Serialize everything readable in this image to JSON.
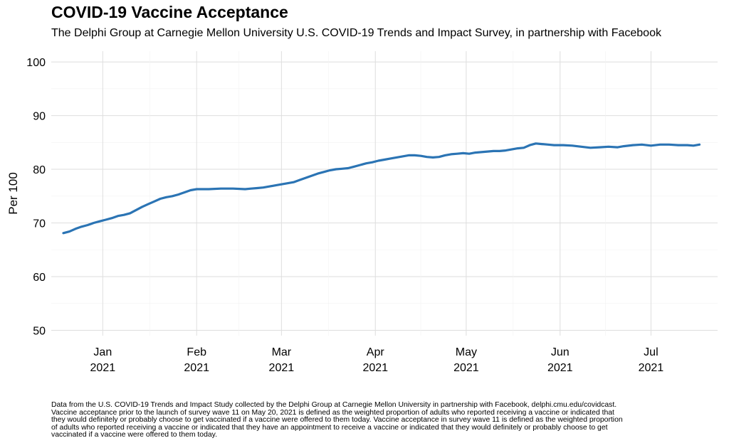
{
  "chart_data": {
    "type": "line",
    "title": "COVID-19 Vaccine Acceptance",
    "subtitle": "The Delphi Group at Carnegie Mellon University U.S. COVID-19 Trends and Impact Survey, in partnership with Facebook",
    "xlabel": "",
    "ylabel": "Per 100",
    "ylim": [
      49,
      102
    ],
    "xlim": [
      "2020-12-15",
      "2021-07-23"
    ],
    "y_ticks": [
      50,
      60,
      70,
      80,
      90,
      100
    ],
    "y_tick_labels": [
      "50",
      "60",
      "70",
      "80",
      "90",
      "100"
    ],
    "x_ticks": [
      {
        "date": "2021-01-01",
        "label_month": "Jan",
        "label_year": "2021"
      },
      {
        "date": "2021-02-01",
        "label_month": "Feb",
        "label_year": "2021"
      },
      {
        "date": "2021-03-01",
        "label_month": "Mar",
        "label_year": "2021"
      },
      {
        "date": "2021-04-01",
        "label_month": "Apr",
        "label_year": "2021"
      },
      {
        "date": "2021-05-01",
        "label_month": "May",
        "label_year": "2021"
      },
      {
        "date": "2021-06-01",
        "label_month": "Jun",
        "label_year": "2021"
      },
      {
        "date": "2021-07-01",
        "label_month": "Jul",
        "label_year": "2021"
      }
    ],
    "grid": true,
    "legend": "none",
    "series": [
      {
        "color": "#2b74b4",
        "points": [
          [
            "2020-12-19",
            68.1
          ],
          [
            "2020-12-21",
            68.4
          ],
          [
            "2020-12-23",
            68.9
          ],
          [
            "2020-12-25",
            69.3
          ],
          [
            "2020-12-27",
            69.6
          ],
          [
            "2020-12-29",
            70.0
          ],
          [
            "2020-12-31",
            70.3
          ],
          [
            "2021-01-02",
            70.6
          ],
          [
            "2021-01-04",
            70.9
          ],
          [
            "2021-01-06",
            71.3
          ],
          [
            "2021-01-08",
            71.5
          ],
          [
            "2021-01-10",
            71.8
          ],
          [
            "2021-01-12",
            72.4
          ],
          [
            "2021-01-14",
            73.0
          ],
          [
            "2021-01-16",
            73.5
          ],
          [
            "2021-01-18",
            74.0
          ],
          [
            "2021-01-20",
            74.5
          ],
          [
            "2021-01-22",
            74.8
          ],
          [
            "2021-01-24",
            75.0
          ],
          [
            "2021-01-26",
            75.3
          ],
          [
            "2021-01-28",
            75.7
          ],
          [
            "2021-01-30",
            76.1
          ],
          [
            "2021-02-01",
            76.3
          ],
          [
            "2021-02-05",
            76.3
          ],
          [
            "2021-02-09",
            76.4
          ],
          [
            "2021-02-13",
            76.4
          ],
          [
            "2021-02-17",
            76.3
          ],
          [
            "2021-02-19",
            76.4
          ],
          [
            "2021-02-21",
            76.5
          ],
          [
            "2021-02-23",
            76.6
          ],
          [
            "2021-02-25",
            76.8
          ],
          [
            "2021-02-27",
            77.0
          ],
          [
            "2021-03-01",
            77.2
          ],
          [
            "2021-03-03",
            77.4
          ],
          [
            "2021-03-05",
            77.6
          ],
          [
            "2021-03-07",
            78.0
          ],
          [
            "2021-03-09",
            78.4
          ],
          [
            "2021-03-11",
            78.8
          ],
          [
            "2021-03-13",
            79.2
          ],
          [
            "2021-03-15",
            79.5
          ],
          [
            "2021-03-17",
            79.8
          ],
          [
            "2021-03-19",
            80.0
          ],
          [
            "2021-03-21",
            80.1
          ],
          [
            "2021-03-23",
            80.2
          ],
          [
            "2021-03-25",
            80.5
          ],
          [
            "2021-03-27",
            80.8
          ],
          [
            "2021-03-29",
            81.1
          ],
          [
            "2021-03-31",
            81.3
          ],
          [
            "2021-04-02",
            81.6
          ],
          [
            "2021-04-04",
            81.8
          ],
          [
            "2021-04-06",
            82.0
          ],
          [
            "2021-04-08",
            82.2
          ],
          [
            "2021-04-10",
            82.4
          ],
          [
            "2021-04-12",
            82.6
          ],
          [
            "2021-04-14",
            82.6
          ],
          [
            "2021-04-16",
            82.5
          ],
          [
            "2021-04-18",
            82.3
          ],
          [
            "2021-04-20",
            82.2
          ],
          [
            "2021-04-22",
            82.3
          ],
          [
            "2021-04-24",
            82.6
          ],
          [
            "2021-04-26",
            82.8
          ],
          [
            "2021-04-28",
            82.9
          ],
          [
            "2021-04-30",
            83.0
          ],
          [
            "2021-05-02",
            82.9
          ],
          [
            "2021-05-04",
            83.1
          ],
          [
            "2021-05-06",
            83.2
          ],
          [
            "2021-05-08",
            83.3
          ],
          [
            "2021-05-10",
            83.4
          ],
          [
            "2021-05-12",
            83.4
          ],
          [
            "2021-05-14",
            83.5
          ],
          [
            "2021-05-16",
            83.7
          ],
          [
            "2021-05-18",
            83.9
          ],
          [
            "2021-05-20",
            84.0
          ],
          [
            "2021-05-22",
            84.5
          ],
          [
            "2021-05-24",
            84.8
          ],
          [
            "2021-05-26",
            84.7
          ],
          [
            "2021-05-28",
            84.6
          ],
          [
            "2021-05-30",
            84.5
          ],
          [
            "2021-06-02",
            84.5
          ],
          [
            "2021-06-05",
            84.4
          ],
          [
            "2021-06-08",
            84.2
          ],
          [
            "2021-06-11",
            84.0
          ],
          [
            "2021-06-14",
            84.1
          ],
          [
            "2021-06-17",
            84.2
          ],
          [
            "2021-06-20",
            84.1
          ],
          [
            "2021-06-22",
            84.3
          ],
          [
            "2021-06-25",
            84.5
          ],
          [
            "2021-06-28",
            84.6
          ],
          [
            "2021-07-01",
            84.4
          ],
          [
            "2021-07-04",
            84.6
          ],
          [
            "2021-07-07",
            84.6
          ],
          [
            "2021-07-10",
            84.5
          ],
          [
            "2021-07-13",
            84.5
          ],
          [
            "2021-07-15",
            84.4
          ],
          [
            "2021-07-17",
            84.6
          ]
        ]
      }
    ],
    "caption_lines": [
      "Data from the U.S. COVID-19 Trends and Impact Study collected by the Delphi Group at Carnegie Mellon University in partnership with Facebook, delphi.cmu.edu/covidcast.",
      "Vaccine acceptance prior to the launch of survey wave 11 on May 20, 2021 is defined as the weighted proportion of adults who reported receiving a vaccine or indicated that",
      "they would definitely or probably choose to get vaccinated if a vaccine were offered to them today. Vaccine acceptance in survey wave 11 is defined as the weighted proportion",
      "of adults who reported receiving a vaccine or indicated that they have an appointment to receive a vaccine or indicated that they would definitely or probably choose to get",
      "vaccinated if a vaccine were offered to them today."
    ]
  }
}
